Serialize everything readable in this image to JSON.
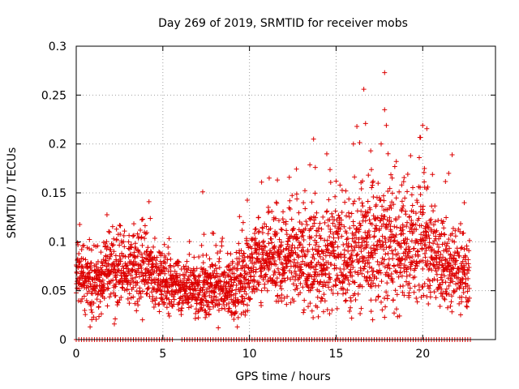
{
  "chart_data": {
    "type": "scatter",
    "title": "Day 269 of 2019, SRMTID for receiver mobs",
    "xlabel": "GPS time / hours",
    "ylabel": "SRMTID / TECUs",
    "xlim": [
      0,
      24.2
    ],
    "ylim": [
      0,
      0.3
    ],
    "xticks": [
      0,
      5,
      10,
      15,
      20
    ],
    "yticks": [
      0,
      0.05,
      0.1,
      0.15,
      0.2,
      0.25,
      0.3
    ],
    "xtick_labels": [
      "0",
      "5",
      "10",
      "15",
      "20"
    ],
    "ytick_labels": [
      "0",
      "0.05",
      "0.1",
      "0.15",
      "0.2",
      "0.25",
      "0.3"
    ],
    "grid": true,
    "marker": "+",
    "series": [
      {
        "name": "SRMTID",
        "color": "#dd0000",
        "trend": [
          {
            "x": 0.0,
            "y": 0.065,
            "spread": 0.015
          },
          {
            "x": 1.0,
            "y": 0.055,
            "spread": 0.015
          },
          {
            "x": 2.5,
            "y": 0.075,
            "spread": 0.02
          },
          {
            "x": 4.0,
            "y": 0.07,
            "spread": 0.018
          },
          {
            "x": 5.0,
            "y": 0.06,
            "spread": 0.015
          },
          {
            "x": 6.5,
            "y": 0.05,
            "spread": 0.013
          },
          {
            "x": 8.0,
            "y": 0.055,
            "spread": 0.016
          },
          {
            "x": 9.0,
            "y": 0.05,
            "spread": 0.015
          },
          {
            "x": 10.5,
            "y": 0.085,
            "spread": 0.022
          },
          {
            "x": 12.0,
            "y": 0.085,
            "spread": 0.022
          },
          {
            "x": 14.0,
            "y": 0.08,
            "spread": 0.025
          },
          {
            "x": 16.0,
            "y": 0.09,
            "spread": 0.028
          },
          {
            "x": 18.0,
            "y": 0.09,
            "spread": 0.03
          },
          {
            "x": 20.0,
            "y": 0.095,
            "spread": 0.03
          },
          {
            "x": 21.0,
            "y": 0.075,
            "spread": 0.022
          },
          {
            "x": 22.0,
            "y": 0.07,
            "spread": 0.02
          },
          {
            "x": 22.7,
            "y": 0.065,
            "spread": 0.018
          }
        ],
        "points": [
          [
            0.1,
            0.097
          ],
          [
            0.3,
            0.083
          ],
          [
            4.2,
            0.141
          ],
          [
            7.3,
            0.151
          ],
          [
            10.7,
            0.161
          ],
          [
            12.3,
            0.166
          ],
          [
            13.7,
            0.205
          ],
          [
            13.8,
            0.176
          ],
          [
            15.0,
            0.162
          ],
          [
            16.0,
            0.2
          ],
          [
            16.2,
            0.218
          ],
          [
            16.6,
            0.256
          ],
          [
            16.7,
            0.221
          ],
          [
            17.0,
            0.193
          ],
          [
            17.6,
            0.2
          ],
          [
            17.8,
            0.273
          ],
          [
            17.8,
            0.235
          ],
          [
            17.9,
            0.219
          ],
          [
            18.0,
            0.19
          ],
          [
            20.0,
            0.219
          ],
          [
            20.1,
            0.175
          ],
          [
            21.5,
            0.17
          ],
          [
            21.7,
            0.189
          ],
          [
            22.4,
            0.14
          ],
          [
            0.8,
            0.013
          ],
          [
            8.2,
            0.012
          ],
          [
            9.3,
            0.013
          ],
          [
            2.2,
            0.016
          ]
        ],
        "zero_points": [
          0.0,
          0.15,
          0.3,
          0.45,
          0.6,
          0.75,
          0.9,
          1.05,
          1.2,
          1.35,
          1.5,
          1.65,
          1.8,
          1.95,
          2.1,
          2.25,
          2.4,
          2.55,
          2.7,
          2.85,
          3.0,
          3.15,
          3.3,
          3.45,
          3.6,
          3.75,
          3.9,
          4.05,
          4.2,
          4.35,
          4.5,
          4.65,
          4.8,
          4.95,
          5.1,
          5.25,
          5.4,
          5.55,
          6.1,
          6.25,
          6.4,
          6.55,
          6.7,
          6.85,
          7.0,
          7.15,
          7.3,
          7.45,
          7.6,
          7.75,
          7.9,
          8.05,
          8.2,
          8.35,
          8.5,
          8.65,
          8.8,
          8.95,
          9.1,
          9.25,
          9.4,
          9.55,
          9.7,
          9.85,
          10.0,
          10.15,
          10.3,
          10.45,
          10.6,
          10.75,
          10.9,
          11.05,
          11.2,
          11.35,
          11.5,
          11.65,
          11.8,
          11.95,
          12.1,
          12.25,
          12.4,
          12.55,
          12.7,
          12.85,
          13.0,
          13.15,
          13.3,
          13.45,
          13.6,
          13.75,
          13.9,
          14.05,
          14.2,
          14.35,
          14.5,
          14.65,
          14.8,
          14.95,
          15.1,
          15.25,
          15.4,
          15.55,
          15.7,
          15.85,
          16.0,
          16.15,
          16.3,
          16.45,
          16.6,
          16.75,
          16.9,
          17.05,
          17.2,
          17.35,
          17.5,
          17.65,
          17.8,
          17.95,
          18.1,
          18.25,
          18.4,
          18.55,
          18.7,
          18.85,
          19.0,
          19.15,
          19.3,
          19.45,
          19.6,
          19.75,
          19.9,
          20.05,
          20.2,
          20.35,
          20.5,
          20.65,
          20.8,
          20.95,
          21.1,
          21.25,
          21.4,
          21.55,
          21.7,
          21.85,
          22.0,
          22.15,
          22.3,
          22.45,
          22.6,
          22.75
        ]
      }
    ]
  }
}
